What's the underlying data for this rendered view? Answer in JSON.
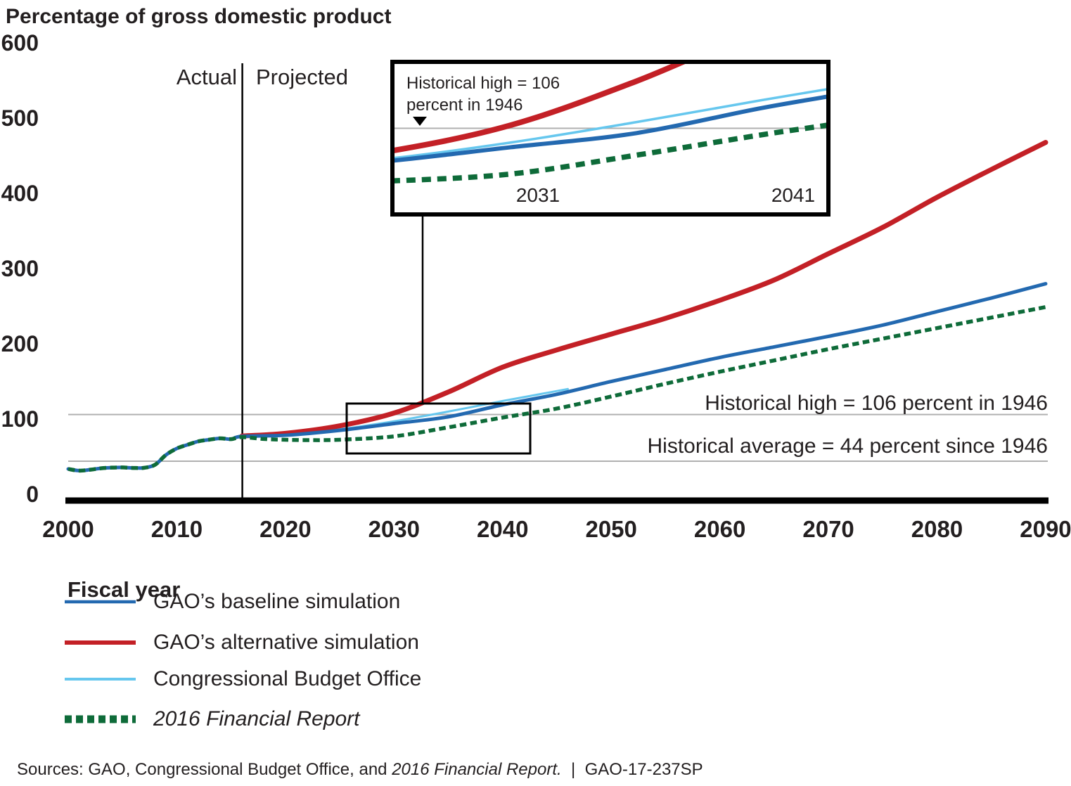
{
  "title": "Percentage of gross domestic product",
  "region_labels": {
    "left": "Actual",
    "right": "Projected"
  },
  "axes": {
    "x_label": "Fiscal year",
    "x_ticks": [
      "2000",
      "2010",
      "2020",
      "2030",
      "2040",
      "2050",
      "2060",
      "2070",
      "2080",
      "2090"
    ],
    "y_ticks": [
      "600",
      "500",
      "400",
      "300",
      "200",
      "100",
      "0"
    ]
  },
  "annotations": {
    "historical_high": "Historical high = 106 percent in 1946",
    "historical_average": "Historical average = 44 percent since 1946"
  },
  "inset": {
    "note_line1": "Historical high = 106",
    "note_line2": "percent in 1946",
    "x_labels": [
      "2031",
      "2041"
    ]
  },
  "legend": [
    {
      "key": "baseline",
      "label": "GAO’s baseline simulation",
      "italic": false
    },
    {
      "key": "alternative",
      "label": "GAO’s alternative simulation",
      "italic": false
    },
    {
      "key": "cbo",
      "label": "Congressional Budget Office",
      "italic": false
    },
    {
      "key": "financial_report",
      "label": "2016 Financial Report",
      "italic": true
    }
  ],
  "source": {
    "prefix": "Sources: GAO, Congressional Budget Office, and ",
    "italic": "2016 Financial Report.",
    "suffix": "  |  GAO-17-237SP"
  },
  "colors": {
    "baseline": "#2369b0",
    "alternative": "#c32026",
    "cbo": "#66c7ee",
    "financial_report": "#0e6b39",
    "reference_line": "#b0b0b0",
    "axis": "#000000",
    "text": "#231f20"
  },
  "chart_data": {
    "type": "line",
    "title": "Percentage of gross domestic product",
    "xlabel": "Fiscal year",
    "ylabel": "Percentage of gross domestic product",
    "x_range": [
      2000,
      2090
    ],
    "y_range": [
      0,
      600
    ],
    "y_tick_step": 100,
    "grid": "off",
    "legend_position": "below",
    "actual_projected_divider_year": 2016,
    "reference_lines": [
      {
        "value": 106,
        "label": "Historical high = 106 percent in 1946"
      },
      {
        "value": 44,
        "label": "Historical average = 44 percent since 1946"
      }
    ],
    "inset_view": {
      "x_range": [
        2025.5,
        2042.5
      ],
      "marked_years": [
        2031,
        2041
      ],
      "note": "Historical high = 106 percent in 1946"
    },
    "series": [
      {
        "name": "GAO’s baseline simulation",
        "key": "baseline",
        "style": "solid",
        "points": [
          [
            2000,
            33.6
          ],
          [
            2001,
            31.4
          ],
          [
            2002,
            32.6
          ],
          [
            2003,
            34.5
          ],
          [
            2004,
            35.4
          ],
          [
            2005,
            35.6
          ],
          [
            2006,
            35
          ],
          [
            2007,
            35.2
          ],
          [
            2008,
            39.3
          ],
          [
            2009,
            52.3
          ],
          [
            2010,
            60.9
          ],
          [
            2011,
            65.9
          ],
          [
            2012,
            70.4
          ],
          [
            2013,
            72.6
          ],
          [
            2014,
            74.4
          ],
          [
            2015,
            73.3
          ],
          [
            2016,
            77
          ],
          [
            2020,
            78.5
          ],
          [
            2025,
            85
          ],
          [
            2030,
            94
          ],
          [
            2035,
            103
          ],
          [
            2040,
            119
          ],
          [
            2045,
            133
          ],
          [
            2050,
            150
          ],
          [
            2055,
            166
          ],
          [
            2060,
            182
          ],
          [
            2065,
            196
          ],
          [
            2070,
            210
          ],
          [
            2075,
            225
          ],
          [
            2080,
            243
          ],
          [
            2085,
            261
          ],
          [
            2090,
            280
          ]
        ]
      },
      {
        "name": "GAO’s alternative simulation",
        "key": "alternative",
        "style": "solid",
        "points": [
          [
            2016,
            77.5
          ],
          [
            2020,
            81
          ],
          [
            2025,
            91
          ],
          [
            2030,
            108
          ],
          [
            2035,
            136
          ],
          [
            2040,
            169
          ],
          [
            2045,
            192
          ],
          [
            2050,
            213
          ],
          [
            2055,
            234
          ],
          [
            2060,
            258
          ],
          [
            2065,
            285
          ],
          [
            2070,
            320
          ],
          [
            2075,
            355
          ],
          [
            2080,
            395
          ],
          [
            2085,
            432
          ],
          [
            2090,
            468
          ]
        ]
      },
      {
        "name": "Congressional Budget Office",
        "key": "cbo",
        "style": "solid",
        "points": [
          [
            2017,
            77.5
          ],
          [
            2020,
            79.5
          ],
          [
            2025,
            86.5
          ],
          [
            2030,
            97
          ],
          [
            2035,
            110
          ],
          [
            2040,
            124
          ],
          [
            2043,
            132
          ],
          [
            2046,
            140
          ]
        ]
      },
      {
        "name": "2016 Financial Report",
        "key": "financial_report",
        "style": "dashed",
        "points": [
          [
            2000,
            33.6
          ],
          [
            2001,
            31.4
          ],
          [
            2002,
            32.6
          ],
          [
            2003,
            34.5
          ],
          [
            2004,
            35.4
          ],
          [
            2005,
            35.6
          ],
          [
            2006,
            35
          ],
          [
            2007,
            35.2
          ],
          [
            2008,
            39.3
          ],
          [
            2009,
            52.3
          ],
          [
            2010,
            60.9
          ],
          [
            2011,
            65.9
          ],
          [
            2012,
            70.4
          ],
          [
            2013,
            72.6
          ],
          [
            2014,
            74.4
          ],
          [
            2015,
            73.3
          ],
          [
            2016,
            76
          ],
          [
            2018,
            73.5
          ],
          [
            2020,
            72.5
          ],
          [
            2022,
            72
          ],
          [
            2025,
            72.5
          ],
          [
            2030,
            77
          ],
          [
            2035,
            89
          ],
          [
            2040,
            102
          ],
          [
            2045,
            114
          ],
          [
            2050,
            130
          ],
          [
            2055,
            147
          ],
          [
            2060,
            163
          ],
          [
            2065,
            178
          ],
          [
            2070,
            193
          ],
          [
            2075,
            207
          ],
          [
            2080,
            221
          ],
          [
            2085,
            235
          ],
          [
            2090,
            249
          ]
        ]
      }
    ]
  }
}
